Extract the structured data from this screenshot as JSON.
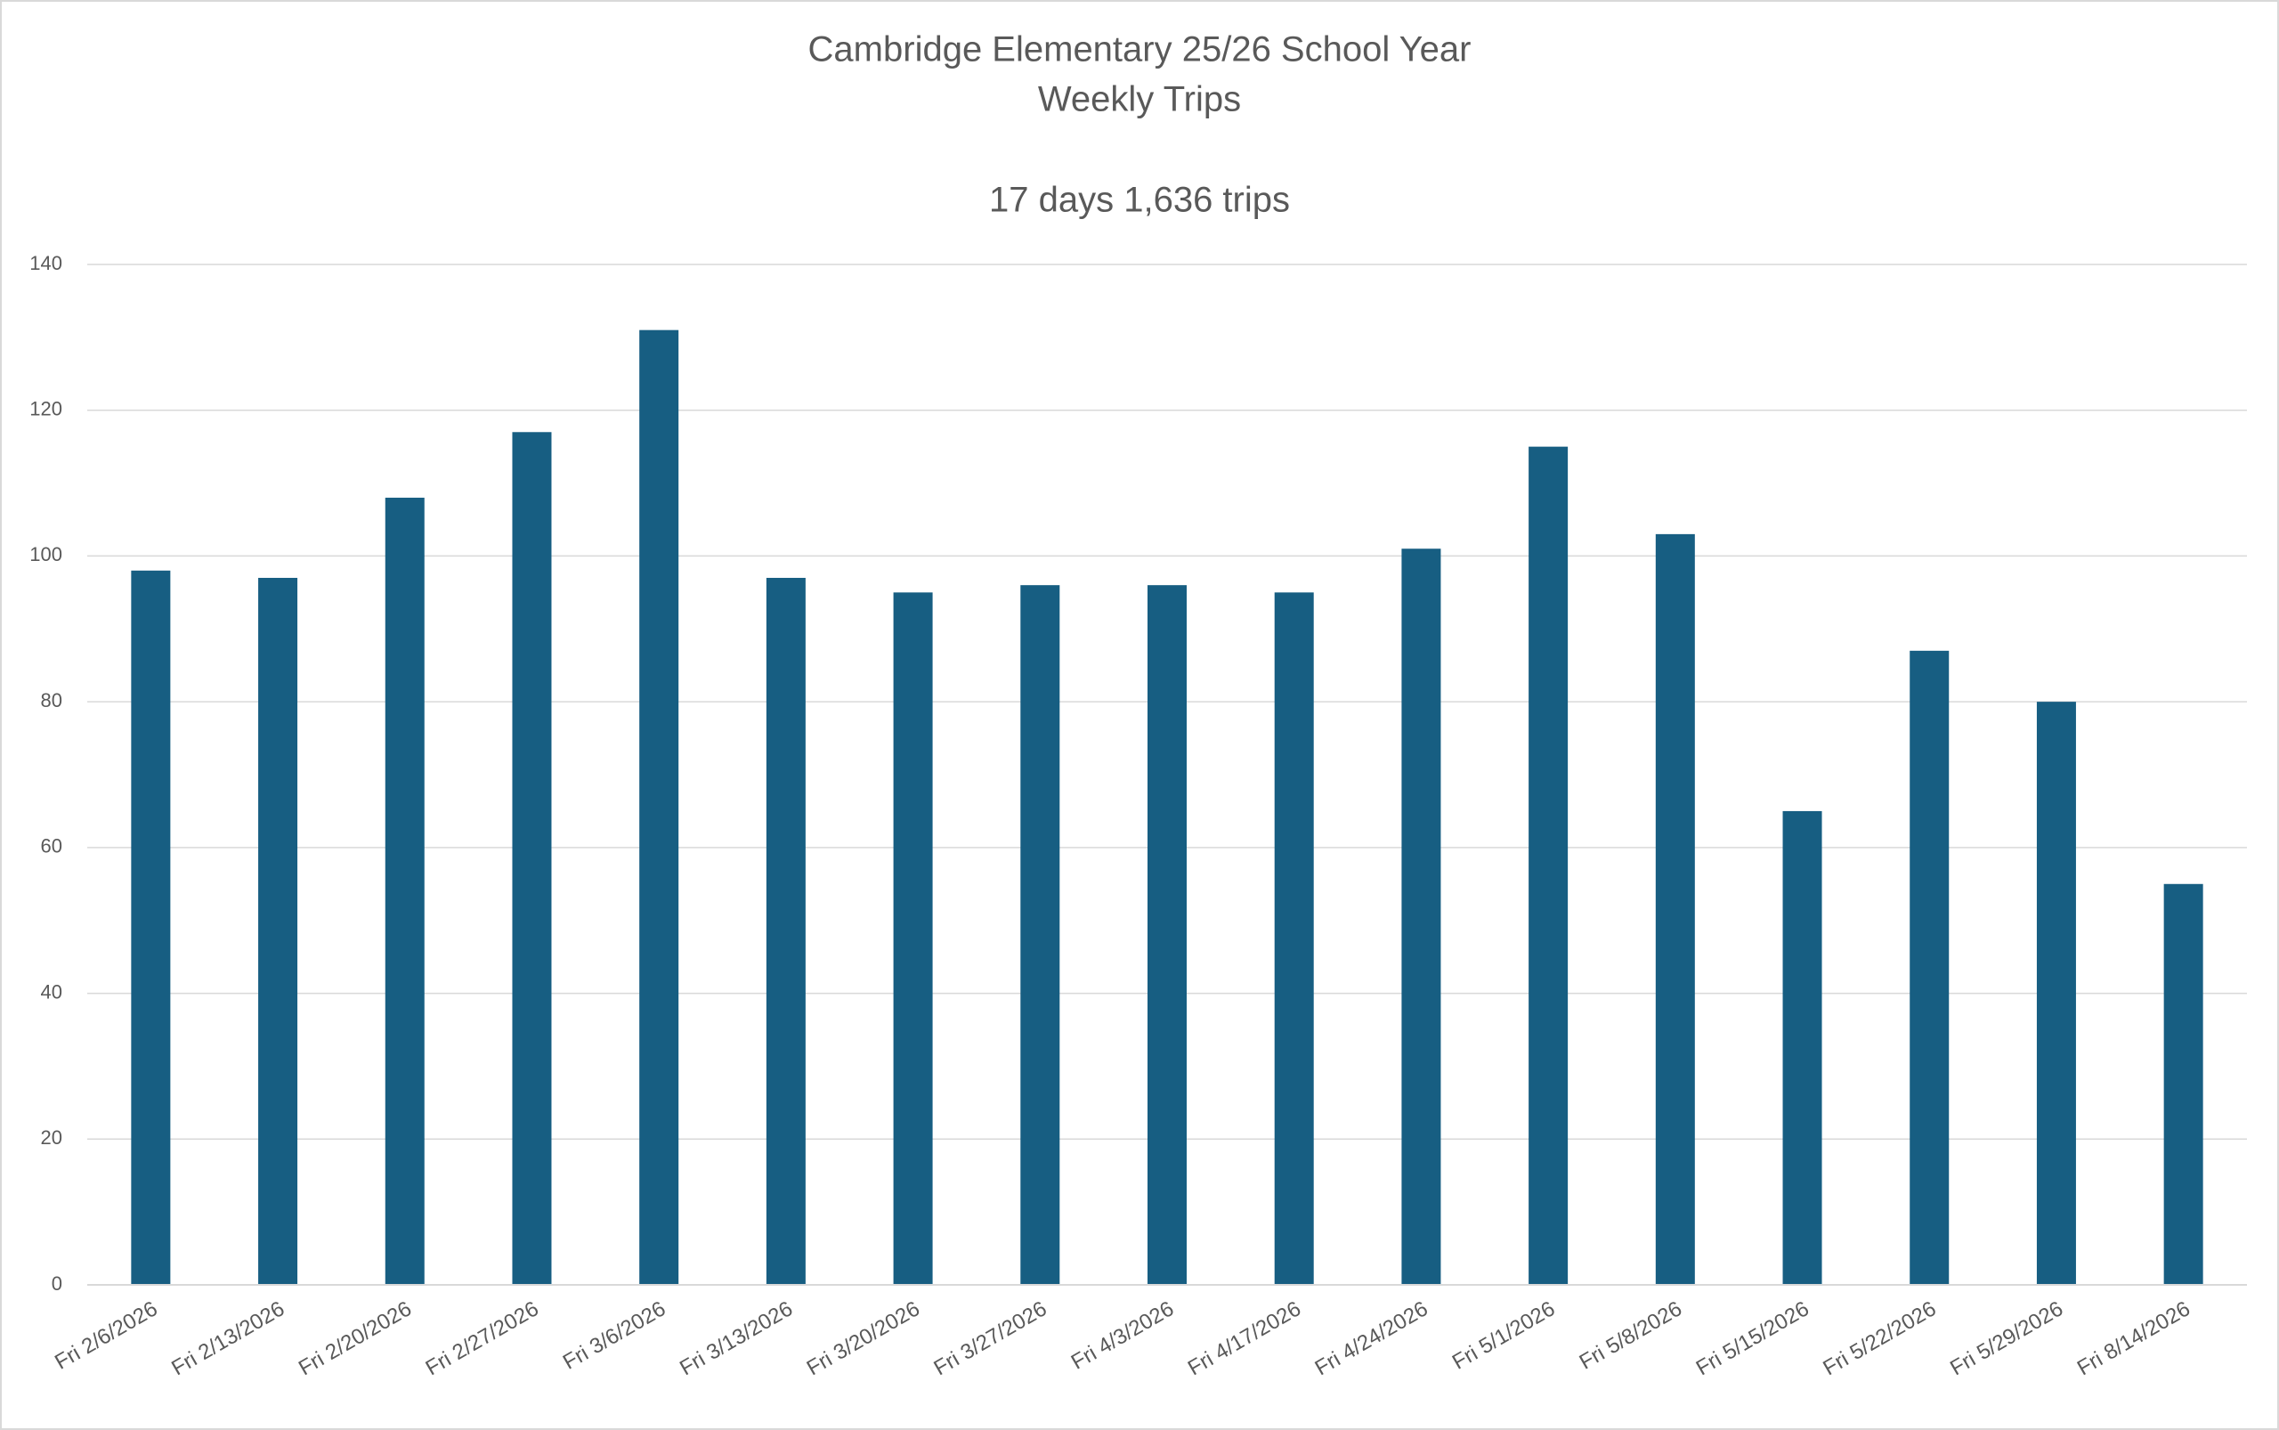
{
  "chart_data": {
    "type": "bar",
    "title": [
      "Cambridge Elementary 25/26 School Year",
      "Weekly Trips"
    ],
    "subtitle": "17 days 1,636 trips",
    "xlabel": "",
    "ylabel": "",
    "ylim": [
      0,
      140
    ],
    "yticks": [
      0,
      20,
      40,
      60,
      80,
      100,
      120,
      140
    ],
    "grid": true,
    "legend": "none",
    "bar_color": "#175E82",
    "grid_color": "#d9d9d9",
    "text_color": "#595959",
    "categories": [
      "Fri 2/6/2026",
      "Fri 2/13/2026",
      "Fri 2/20/2026",
      "Fri 2/27/2026",
      "Fri 3/6/2026",
      "Fri 3/13/2026",
      "Fri 3/20/2026",
      "Fri 3/27/2026",
      "Fri 4/3/2026",
      "Fri 4/17/2026",
      "Fri 4/24/2026",
      "Fri 5/1/2026",
      "Fri 5/8/2026",
      "Fri 5/15/2026",
      "Fri 5/22/2026",
      "Fri 5/29/2026",
      "Fri 8/14/2026"
    ],
    "values": [
      98,
      97,
      108,
      117,
      131,
      97,
      95,
      96,
      96,
      95,
      101,
      115,
      103,
      65,
      87,
      80,
      55
    ]
  }
}
